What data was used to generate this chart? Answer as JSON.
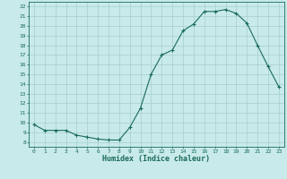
{
  "x": [
    0,
    1,
    2,
    3,
    4,
    5,
    6,
    7,
    8,
    9,
    10,
    11,
    12,
    13,
    14,
    15,
    16,
    17,
    18,
    19,
    20,
    21,
    22,
    23
  ],
  "y": [
    9.8,
    9.2,
    9.2,
    9.2,
    8.7,
    8.5,
    8.3,
    8.2,
    8.2,
    9.5,
    11.5,
    15.0,
    17.0,
    17.5,
    19.5,
    20.2,
    21.5,
    21.5,
    21.7,
    21.3,
    20.3,
    18.0,
    15.8,
    13.7
  ],
  "xlabel": "Humidex (Indice chaleur)",
  "ylabel": "",
  "title": "",
  "line_color": "#1a6b5a",
  "marker_color": "#1a6b5a",
  "bg_color": "#c8eaea",
  "grid_color": "#a8cece",
  "xlim": [
    -0.5,
    23.5
  ],
  "ylim": [
    7.5,
    22.5
  ],
  "xticks": [
    0,
    1,
    2,
    3,
    4,
    5,
    6,
    7,
    8,
    9,
    10,
    11,
    12,
    13,
    14,
    15,
    16,
    17,
    18,
    19,
    20,
    21,
    22,
    23
  ],
  "yticks": [
    8,
    9,
    10,
    11,
    12,
    13,
    14,
    15,
    16,
    17,
    18,
    19,
    20,
    21,
    22
  ]
}
